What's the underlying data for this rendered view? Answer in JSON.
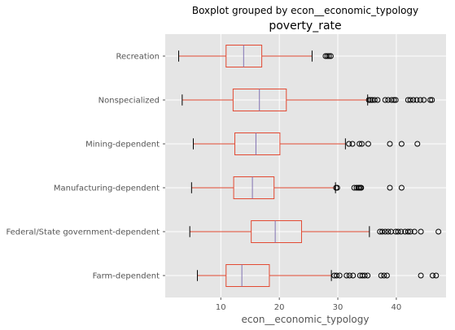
{
  "chart_data": {
    "type": "boxplot",
    "suptitle": "Boxplot grouped by econ__economic_typology",
    "title": "poverty_rate",
    "xlabel": "econ__economic_typology",
    "ylabel": "",
    "orientation": "horizontal",
    "xlim": [
      0.5,
      48.5
    ],
    "xticks": [
      10,
      20,
      30,
      40
    ],
    "grid": true,
    "colors": {
      "background": "#e5e5e5",
      "grid": "#ffffff",
      "box": "#e24a33",
      "median": "#8172b2",
      "whisker": "#e24a33",
      "cap": "#000000",
      "flier": "#000000",
      "tick_text": "#555555"
    },
    "categories": [
      "Recreation",
      "Nonspecialized",
      "Mining-dependent",
      "Manufacturing-dependent",
      "Federal/State government-dependent",
      "Farm-dependent"
    ],
    "boxes": [
      {
        "category": "Recreation",
        "whislo": 2.8,
        "q1": 10.9,
        "med": 13.9,
        "q3": 17.0,
        "whishi": 25.6,
        "fliers": [
          27.9,
          28.2,
          28.5,
          28.8
        ]
      },
      {
        "category": "Nonspecialized",
        "whislo": 3.4,
        "q1": 12.1,
        "med": 16.6,
        "q3": 21.2,
        "whishi": 35.1,
        "fliers": [
          35.3,
          35.6,
          35.9,
          36.3,
          36.8,
          38.1,
          38.6,
          39.2,
          39.6,
          39.9,
          42.0,
          42.4,
          42.9,
          43.5,
          44.1,
          44.7,
          45.8,
          46.1
        ]
      },
      {
        "category": "Mining-dependent",
        "whislo": 5.3,
        "q1": 12.4,
        "med": 16.0,
        "q3": 20.1,
        "whishi": 31.3,
        "fliers": [
          31.9,
          32.5,
          33.7,
          34.1,
          35.2,
          38.9,
          40.9,
          43.6
        ]
      },
      {
        "category": "Manufacturing-dependent",
        "whislo": 5.0,
        "q1": 12.2,
        "med": 15.4,
        "q3": 19.1,
        "whishi": 29.6,
        "fliers": [
          29.7,
          29.9,
          32.8,
          33.2,
          33.5,
          33.7,
          33.9,
          34.0,
          38.9,
          40.9
        ]
      },
      {
        "category": "Federal/State government-dependent",
        "whislo": 4.7,
        "q1": 15.2,
        "med": 19.3,
        "q3": 23.8,
        "whishi": 35.4,
        "fliers": [
          37.2,
          37.6,
          38.1,
          38.6,
          39.1,
          39.9,
          40.3,
          40.8,
          41.5,
          42.0,
          42.4,
          43.1,
          44.2,
          47.2
        ]
      },
      {
        "category": "Farm-dependent",
        "whislo": 6.0,
        "q1": 10.9,
        "med": 13.6,
        "q3": 18.3,
        "whishi": 28.9,
        "fliers": [
          29.4,
          29.8,
          30.3,
          31.5,
          32.0,
          32.6,
          33.8,
          34.2,
          34.6,
          35.1,
          37.4,
          37.9,
          38.4,
          44.2,
          46.2,
          46.8
        ]
      }
    ]
  }
}
